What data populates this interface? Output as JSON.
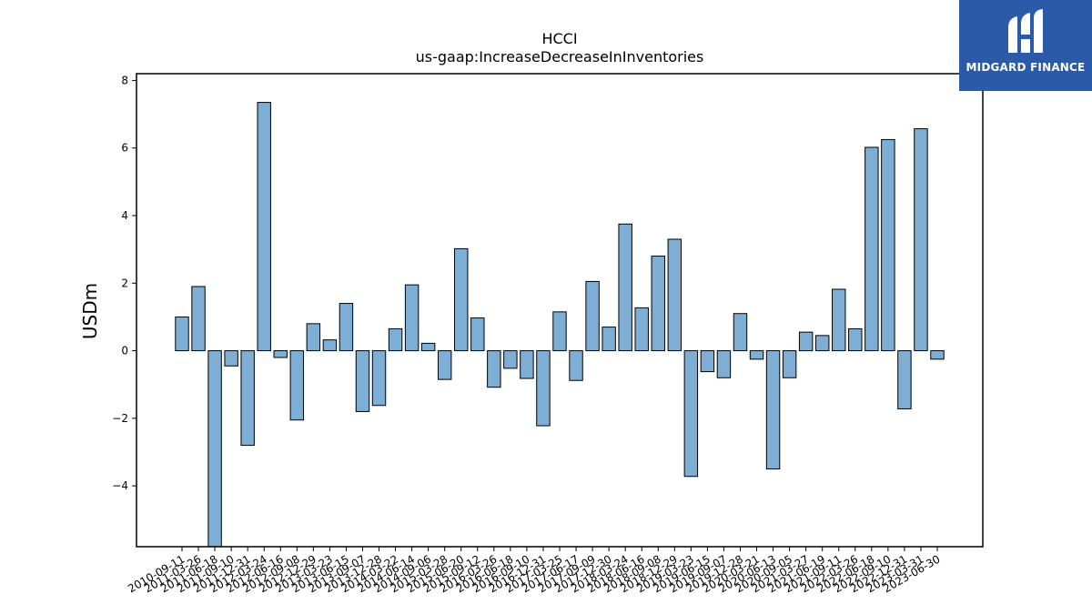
{
  "logo": {
    "name": "MIDGARD FINANCE",
    "background": "#2a5aa8",
    "icon": "midgard-logo-icon"
  },
  "chart_data": {
    "type": "bar",
    "title": "HCCI",
    "subtitle": "us-gaap:IncreaseDecreaseInInventories",
    "xlabel": "",
    "ylabel": "USDm",
    "ylim": [
      -5.8,
      8.2
    ],
    "yticks": [
      -4,
      -2,
      0,
      2,
      4,
      6,
      8
    ],
    "bar_color": "#7eaed3",
    "edge_color": "#000000",
    "grid": false,
    "categories": [
      "2010-09-11",
      "2011-03-26",
      "2011-06-18",
      "2011-09-10",
      "2011-12-31",
      "2012-03-24",
      "2012-06-16",
      "2012-09-08",
      "2012-12-29",
      "2013-03-23",
      "2013-06-15",
      "2013-09-07",
      "2013-12-28",
      "2014-03-22",
      "2014-06-14",
      "2014-09-06",
      "2015-03-28",
      "2015-06-20",
      "2015-09-12",
      "2016-03-26",
      "2016-06-18",
      "2016-09-10",
      "2016-12-31",
      "2017-03-25",
      "2017-06-17",
      "2017-09-09",
      "2017-12-30",
      "2018-03-24",
      "2018-06-16",
      "2018-09-08",
      "2018-12-29",
      "2019-03-23",
      "2019-06-15",
      "2019-09-07",
      "2019-12-28",
      "2020-03-21",
      "2020-06-13",
      "2020-09-05",
      "2021-03-27",
      "2021-06-19",
      "2021-09-11",
      "2022-03-26",
      "2022-06-18",
      "2022-09-10",
      "2022-12-31",
      "2023-03-31",
      "2023-06-30"
    ],
    "values": [
      1.0,
      1.9,
      -5.8,
      -0.45,
      -2.8,
      7.35,
      -0.2,
      -2.05,
      0.8,
      0.32,
      1.4,
      -1.8,
      -1.62,
      0.65,
      1.95,
      0.22,
      -0.85,
      3.02,
      0.97,
      -1.08,
      -0.52,
      -0.82,
      -2.22,
      1.15,
      -0.88,
      2.05,
      0.7,
      3.75,
      1.27,
      2.8,
      3.3,
      -3.72,
      -0.62,
      -0.8,
      1.1,
      -0.25,
      -3.5,
      -0.8,
      0.55,
      0.45,
      1.82,
      0.65,
      6.02,
      6.25,
      -1.72,
      6.57,
      -0.25
    ]
  }
}
